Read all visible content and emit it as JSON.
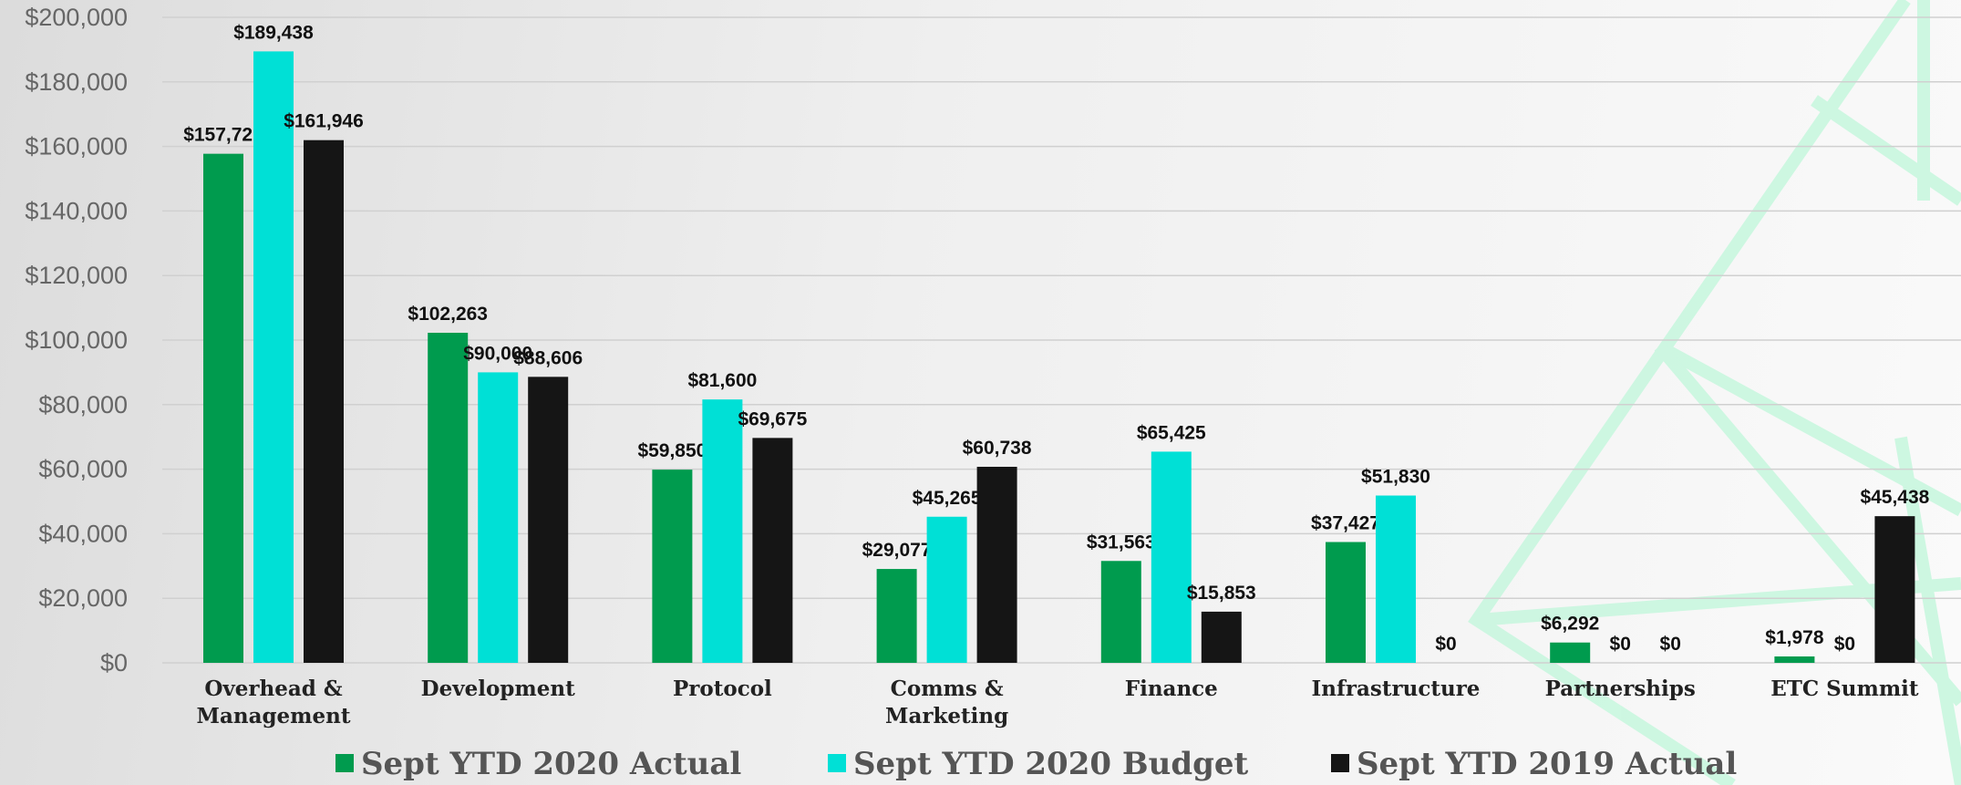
{
  "chart_data": {
    "type": "bar",
    "categories": [
      "Overhead & Management",
      "Development",
      "Protocol",
      "Comms & Marketing",
      "Finance",
      "Infrastructure",
      "Partnerships",
      "ETC Summit"
    ],
    "series": [
      {
        "name": "Sept YTD 2020 Actual",
        "color": "#009b4e",
        "values": [
          157727,
          102263,
          59850,
          29077,
          31563,
          37427,
          6292,
          1978
        ],
        "value_labels": [
          "$157,727",
          "$102,263",
          "$59,850",
          "$29,077",
          "$31,563",
          "$37,427",
          "$6,292",
          "$1,978"
        ]
      },
      {
        "name": "Sept YTD 2020 Budget",
        "color": "#00e0d6",
        "values": [
          189438,
          90000,
          81600,
          45265,
          65425,
          51830,
          0,
          0
        ],
        "value_labels": [
          "$189,438",
          "$90,000",
          "$81,600",
          "$45,265",
          "$65,425",
          "$51,830",
          "$0",
          "$0"
        ]
      },
      {
        "name": "Sept YTD 2019 Actual",
        "color": "#151515",
        "values": [
          161946,
          88606,
          69675,
          60738,
          15853,
          0,
          0,
          45438
        ],
        "value_labels": [
          "$161,946",
          "$88,606",
          "$69,675",
          "$60,738",
          "$15,853",
          "$0",
          "$0",
          "$45,438"
        ]
      }
    ],
    "ylim": [
      0,
      200000
    ],
    "yticks": [
      {
        "value": 0,
        "label": "$0"
      },
      {
        "value": 20000,
        "label": "$20,000"
      },
      {
        "value": 40000,
        "label": "$40,000"
      },
      {
        "value": 60000,
        "label": "$60,000"
      },
      {
        "value": 80000,
        "label": "$80,000"
      },
      {
        "value": 100000,
        "label": "$100,000"
      },
      {
        "value": 120000,
        "label": "$120,000"
      },
      {
        "value": 140000,
        "label": "$140,000"
      },
      {
        "value": 160000,
        "label": "$160,000"
      },
      {
        "value": 180000,
        "label": "$180,000"
      },
      {
        "value": 200000,
        "label": "$200,000"
      }
    ],
    "grid": true,
    "legend": "bottom"
  }
}
